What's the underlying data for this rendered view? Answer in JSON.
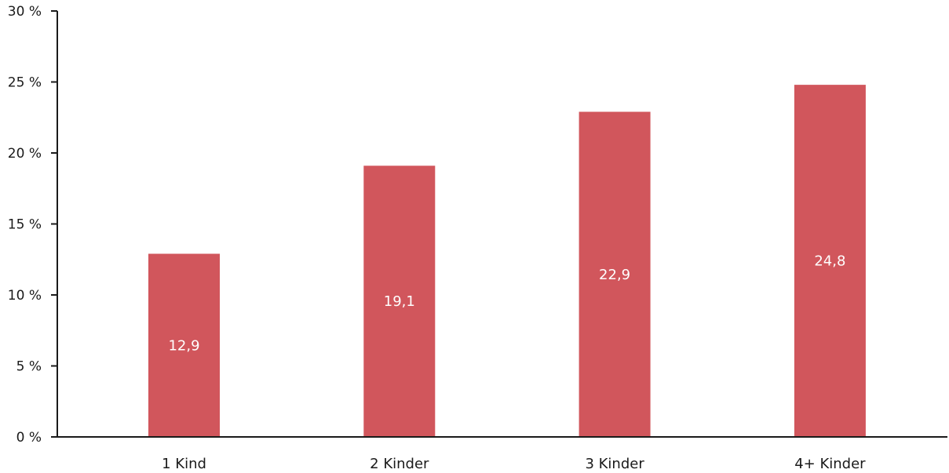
{
  "chart_data": {
    "type": "bar",
    "categories": [
      "1 Kind",
      "2 Kinder",
      "3 Kinder",
      "4+ Kinder"
    ],
    "values": [
      12.9,
      19.1,
      22.9,
      24.8
    ],
    "data_labels": [
      "12,9",
      "19,1",
      "22,9",
      "24,8"
    ],
    "ylim": [
      0,
      30
    ],
    "yticks": [
      0,
      5,
      10,
      15,
      20,
      25,
      30
    ],
    "ytick_labels": [
      "0 %",
      "5 %",
      "10 %",
      "15 %",
      "20 %",
      "25 %",
      "30 %"
    ],
    "title": "",
    "xlabel": "",
    "ylabel": "",
    "grid": false,
    "legend": "none",
    "bar_color": "#d1565c",
    "axis_color": "#1a1a1a"
  }
}
